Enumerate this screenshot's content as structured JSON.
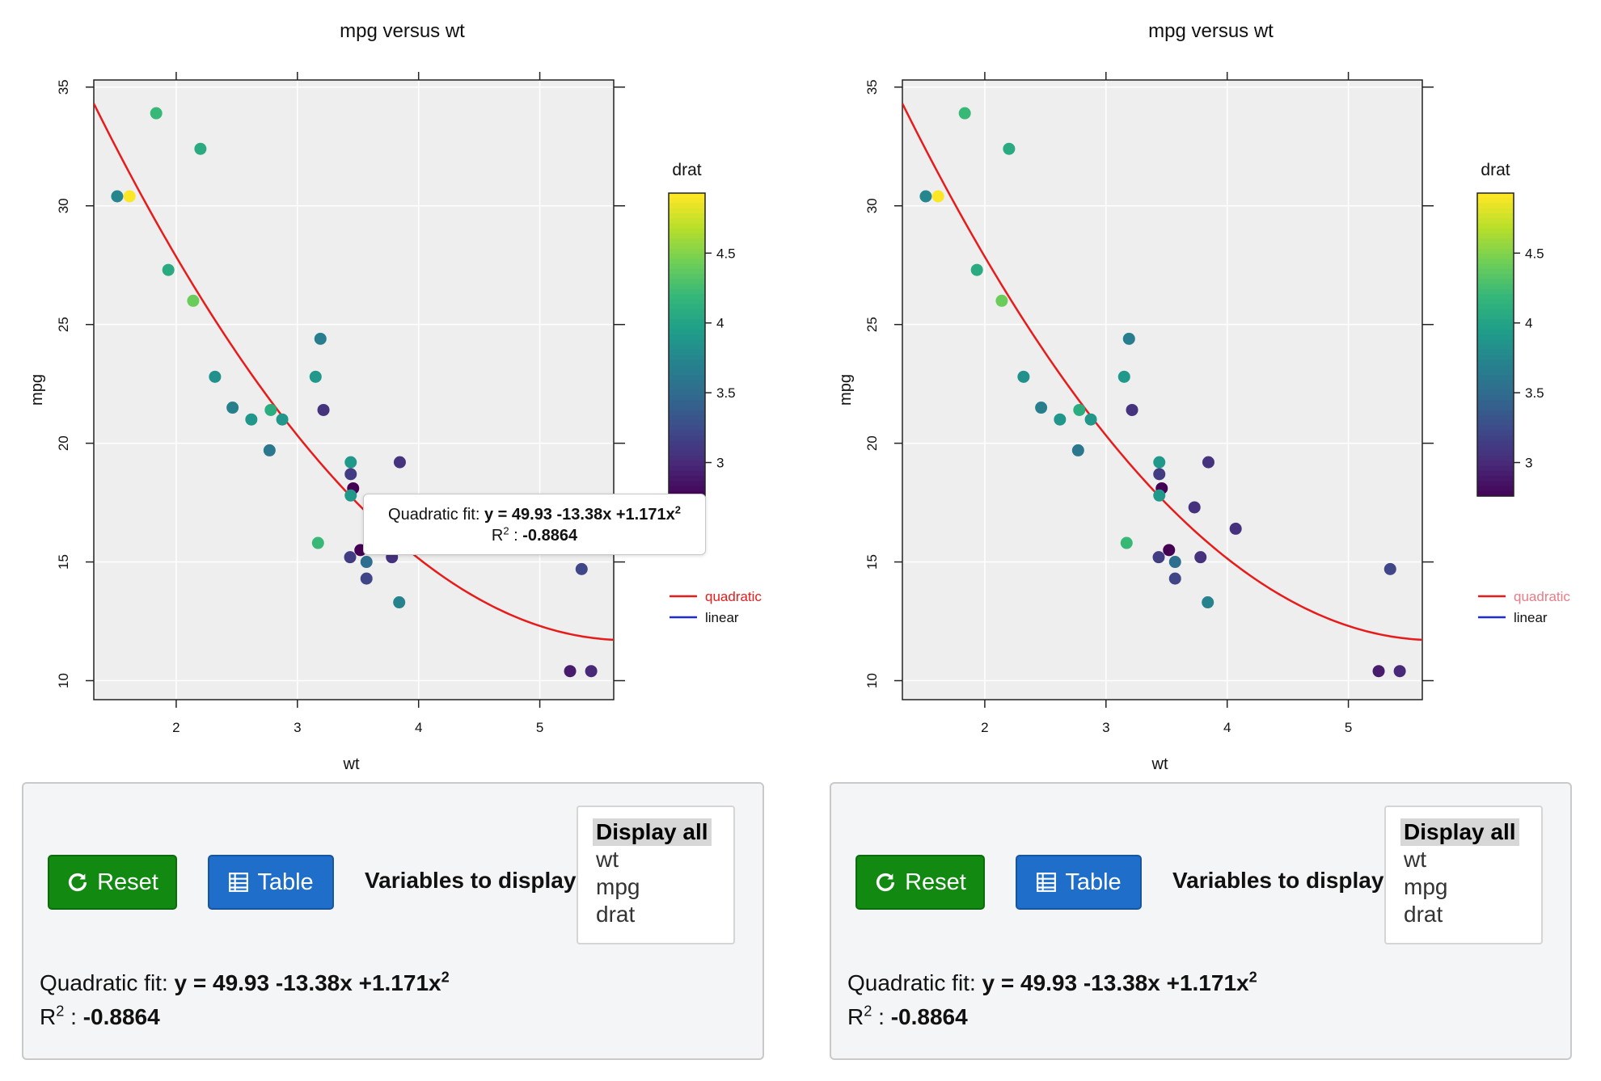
{
  "chart_data": [
    {
      "type": "scatter",
      "title": "mpg versus wt",
      "xlabel": "wt",
      "ylabel": "mpg",
      "xlim": [
        1.32,
        5.61
      ],
      "ylim": [
        9.2,
        35.3
      ],
      "xticks": [
        2,
        3,
        4,
        5
      ],
      "yticks": [
        10,
        15,
        20,
        25,
        30,
        35
      ],
      "grid": true,
      "color_variable": "drat",
      "colorbar_ticks": [
        3,
        3.5,
        4,
        4.5
      ],
      "colorbar_range": [
        2.76,
        4.93
      ],
      "legend": [
        {
          "name": "quadratic",
          "color": "#e81b1b"
        },
        {
          "name": "linear",
          "color": "#1f2ad8"
        }
      ],
      "points": [
        {
          "x": 2.62,
          "y": 21.0,
          "c": 3.9
        },
        {
          "x": 2.875,
          "y": 21.0,
          "c": 3.9
        },
        {
          "x": 2.32,
          "y": 22.8,
          "c": 3.85
        },
        {
          "x": 3.215,
          "y": 21.4,
          "c": 3.08
        },
        {
          "x": 3.44,
          "y": 18.7,
          "c": 3.15
        },
        {
          "x": 3.46,
          "y": 18.1,
          "c": 2.76
        },
        {
          "x": 3.57,
          "y": 14.3,
          "c": 3.21
        },
        {
          "x": 3.19,
          "y": 24.4,
          "c": 3.69
        },
        {
          "x": 3.15,
          "y": 22.8,
          "c": 3.92
        },
        {
          "x": 3.44,
          "y": 19.2,
          "c": 3.92
        },
        {
          "x": 3.44,
          "y": 17.8,
          "c": 3.92
        },
        {
          "x": 4.07,
          "y": 16.4,
          "c": 3.07
        },
        {
          "x": 3.73,
          "y": 17.3,
          "c": 3.07
        },
        {
          "x": 3.78,
          "y": 15.2,
          "c": 3.07
        },
        {
          "x": 5.25,
          "y": 10.4,
          "c": 2.93
        },
        {
          "x": 5.424,
          "y": 10.4,
          "c": 3.0
        },
        {
          "x": 5.345,
          "y": 14.7,
          "c": 3.23
        },
        {
          "x": 2.2,
          "y": 32.4,
          "c": 4.08
        },
        {
          "x": 1.615,
          "y": 30.4,
          "c": 4.93
        },
        {
          "x": 1.835,
          "y": 33.9,
          "c": 4.22
        },
        {
          "x": 2.465,
          "y": 21.5,
          "c": 3.7
        },
        {
          "x": 3.52,
          "y": 15.5,
          "c": 2.76
        },
        {
          "x": 3.435,
          "y": 15.2,
          "c": 3.15
        },
        {
          "x": 3.84,
          "y": 13.3,
          "c": 3.73
        },
        {
          "x": 3.845,
          "y": 19.2,
          "c": 3.08
        },
        {
          "x": 1.935,
          "y": 27.3,
          "c": 4.08
        },
        {
          "x": 2.14,
          "y": 26.0,
          "c": 4.43
        },
        {
          "x": 1.513,
          "y": 30.4,
          "c": 3.77
        },
        {
          "x": 3.17,
          "y": 15.8,
          "c": 4.22
        },
        {
          "x": 2.77,
          "y": 19.7,
          "c": 3.62
        },
        {
          "x": 3.57,
          "y": 15.0,
          "c": 3.54
        },
        {
          "x": 2.78,
          "y": 21.4,
          "c": 4.11
        }
      ],
      "quadratic_fit": {
        "a": 49.93,
        "b": -13.38,
        "c": 1.171
      }
    },
    {
      "type": "scatter",
      "title": "mpg versus wt",
      "xlabel": "wt",
      "ylabel": "mpg",
      "xlim": [
        1.32,
        5.61
      ],
      "ylim": [
        9.2,
        35.3
      ],
      "xticks": [
        2,
        3,
        4,
        5
      ],
      "yticks": [
        10,
        15,
        20,
        25,
        30,
        35
      ],
      "grid": true,
      "color_variable": "drat",
      "colorbar_ticks": [
        3,
        3.5,
        4,
        4.5
      ],
      "colorbar_range": [
        2.76,
        4.93
      ],
      "legend": [
        {
          "name": "quadratic",
          "color": "#e87c86"
        },
        {
          "name": "linear",
          "color": "#1f2ad8"
        }
      ],
      "points": [
        {
          "x": 2.62,
          "y": 21.0,
          "c": 3.9
        },
        {
          "x": 2.875,
          "y": 21.0,
          "c": 3.9
        },
        {
          "x": 2.32,
          "y": 22.8,
          "c": 3.85
        },
        {
          "x": 3.215,
          "y": 21.4,
          "c": 3.08
        },
        {
          "x": 3.44,
          "y": 18.7,
          "c": 3.15
        },
        {
          "x": 3.46,
          "y": 18.1,
          "c": 2.76
        },
        {
          "x": 3.57,
          "y": 14.3,
          "c": 3.21
        },
        {
          "x": 3.19,
          "y": 24.4,
          "c": 3.69
        },
        {
          "x": 3.15,
          "y": 22.8,
          "c": 3.92
        },
        {
          "x": 3.44,
          "y": 19.2,
          "c": 3.92
        },
        {
          "x": 3.44,
          "y": 17.8,
          "c": 3.92
        },
        {
          "x": 4.07,
          "y": 16.4,
          "c": 3.07
        },
        {
          "x": 3.73,
          "y": 17.3,
          "c": 3.07
        },
        {
          "x": 3.78,
          "y": 15.2,
          "c": 3.07
        },
        {
          "x": 5.25,
          "y": 10.4,
          "c": 2.93
        },
        {
          "x": 5.424,
          "y": 10.4,
          "c": 3.0
        },
        {
          "x": 5.345,
          "y": 14.7,
          "c": 3.23
        },
        {
          "x": 2.2,
          "y": 32.4,
          "c": 4.08
        },
        {
          "x": 1.615,
          "y": 30.4,
          "c": 4.93
        },
        {
          "x": 1.835,
          "y": 33.9,
          "c": 4.22
        },
        {
          "x": 2.465,
          "y": 21.5,
          "c": 3.7
        },
        {
          "x": 3.52,
          "y": 15.5,
          "c": 2.76
        },
        {
          "x": 3.435,
          "y": 15.2,
          "c": 3.15
        },
        {
          "x": 3.84,
          "y": 13.3,
          "c": 3.73
        },
        {
          "x": 3.845,
          "y": 19.2,
          "c": 3.08
        },
        {
          "x": 1.935,
          "y": 27.3,
          "c": 4.08
        },
        {
          "x": 2.14,
          "y": 26.0,
          "c": 4.43
        },
        {
          "x": 1.513,
          "y": 30.4,
          "c": 3.77
        },
        {
          "x": 3.17,
          "y": 15.8,
          "c": 4.22
        },
        {
          "x": 2.77,
          "y": 19.7,
          "c": 3.62
        },
        {
          "x": 3.57,
          "y": 15.0,
          "c": 3.54
        },
        {
          "x": 2.78,
          "y": 21.4,
          "c": 4.11
        }
      ],
      "quadratic_fit": {
        "a": 49.93,
        "b": -13.38,
        "c": 1.171
      }
    }
  ],
  "tooltip": {
    "label": "Quadratic fit:",
    "equation": "y = 49.93 -13.38x +1.171x",
    "exponent": "2",
    "r_label": "R",
    "r_suffix": " : ",
    "r_value": "-0.8864"
  },
  "controls": {
    "reset_label": "Reset",
    "table_label": "Table",
    "vars_label": "Variables to display",
    "options": [
      "Display all",
      "wt",
      "mpg",
      "drat"
    ],
    "selected_option": "Display all",
    "fit_label": "Quadratic fit:",
    "fit_equation": "y = 49.93 -13.38x +1.171x",
    "fit_exponent": "2",
    "r_label": "R",
    "r_suffix": " : ",
    "r_value": "-0.8864"
  },
  "colors": {
    "reset": "#128a12",
    "table": "#1f6ec9",
    "panel_bg": "#eeeeee",
    "fit_line": "#e81b1b"
  }
}
